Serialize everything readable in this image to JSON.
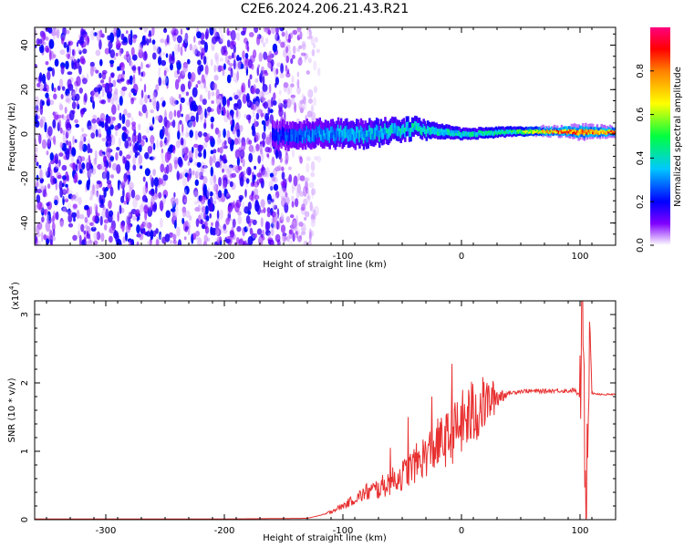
{
  "title": "C2E6.2024.206.21.43.R21",
  "chart_data": [
    {
      "type": "heatmap",
      "name": "spectrogram",
      "xlabel": "Height of straight line (km)",
      "ylabel": "Frequency (Hz)",
      "xlim": [
        -360,
        130
      ],
      "ylim": [
        -50,
        48
      ],
      "xticks": [
        -300,
        -200,
        -100,
        0,
        100
      ],
      "yticks": [
        -40,
        -20,
        0,
        20,
        40
      ],
      "colorbar": {
        "label": "Normalized spectral amplitude",
        "range": [
          0,
          1
        ],
        "ticks": [
          "0.0",
          "0.2",
          "0.4",
          "0.6",
          "0.8"
        ],
        "tick_values": [
          0.0,
          0.2,
          0.4,
          0.6,
          0.8
        ],
        "colors": [
          "#ffffff",
          "#8000ff",
          "#0000ff",
          "#00c8ff",
          "#00ff40",
          "#ffff00",
          "#ff8000",
          "#ff0000",
          "#ff0080"
        ]
      },
      "features": {
        "noise_region_x": [
          -360,
          -130
        ],
        "signal_band": [
          {
            "x": -160,
            "center": 0,
            "halfwidth": 7,
            "amplitude": 0.25
          },
          {
            "x": -120,
            "center": 1,
            "halfwidth": 7,
            "amplitude": 0.35
          },
          {
            "x": -80,
            "center": 1,
            "halfwidth": 7,
            "amplitude": 0.4
          },
          {
            "x": -40,
            "center": 3,
            "halfwidth": 5,
            "amplitude": 0.45
          },
          {
            "x": 0,
            "center": 0,
            "halfwidth": 3,
            "amplitude": 0.45
          },
          {
            "x": 40,
            "center": 1,
            "halfwidth": 2.5,
            "amplitude": 0.5
          },
          {
            "x": 80,
            "center": 1,
            "halfwidth": 2,
            "amplitude": 0.9
          },
          {
            "x": 100,
            "center": 1,
            "halfwidth": 3,
            "amplitude": 0.9
          },
          {
            "x": 130,
            "center": 1,
            "halfwidth": 2,
            "amplitude": 0.9
          }
        ]
      }
    },
    {
      "type": "line",
      "name": "snr",
      "xlabel": "Height of straight line (km)",
      "ylabel": "SNR (10 * v/v)",
      "yscale_label": "(x10",
      "yscale_exponent": "4",
      "yscale_suffix": ")",
      "xlim": [
        -360,
        130
      ],
      "ylim": [
        0,
        3.2
      ],
      "xticks": [
        -300,
        -200,
        -100,
        0,
        100
      ],
      "yticks": [
        0,
        1,
        2,
        3
      ],
      "color": "#e83030",
      "series": [
        {
          "x": [
            -360,
            -300,
            -200,
            -130,
            -115,
            -100,
            -90,
            -80,
            -70,
            -60,
            -50,
            -40,
            -30,
            -20,
            -10,
            -5,
            0,
            10,
            20,
            30,
            40,
            50,
            60,
            70,
            80,
            90,
            95,
            100,
            102,
            105,
            108,
            110,
            115,
            120,
            130
          ],
          "y": [
            0.01,
            0.01,
            0.01,
            0.02,
            0.08,
            0.2,
            0.3,
            0.4,
            0.45,
            0.55,
            0.65,
            0.8,
            0.95,
            1.1,
            1.2,
            1.3,
            1.4,
            1.55,
            1.7,
            1.8,
            1.85,
            1.88,
            1.88,
            1.88,
            1.89,
            1.88,
            1.9,
            1.8,
            3.2,
            0.15,
            3.05,
            1.85,
            1.84,
            1.83,
            1.83
          ],
          "spikes": [
            {
              "x": -8,
              "y": 2.28
            },
            {
              "x": -25,
              "y": 1.8
            },
            {
              "x": -45,
              "y": 1.5
            },
            {
              "x": -60,
              "y": 1.05
            }
          ]
        }
      ]
    }
  ]
}
